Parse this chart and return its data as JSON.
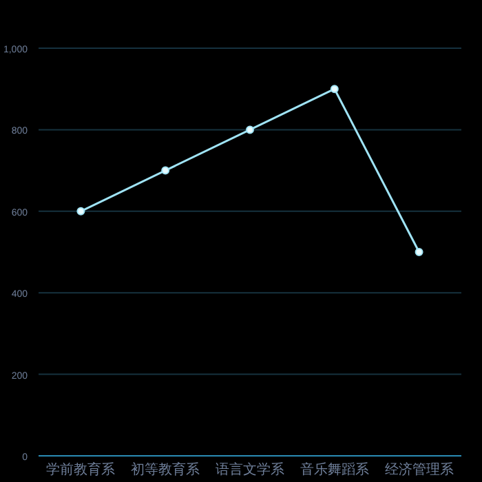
{
  "chart_data": {
    "type": "line",
    "categories": [
      "学前教育系",
      "初等教育系",
      "语言文学系",
      "音乐舞蹈系",
      "经济管理系"
    ],
    "series": [
      {
        "color": "#9fe3f5",
        "values": [
          600,
          700,
          800,
          900,
          500
        ]
      }
    ],
    "ylim": [
      0,
      1000
    ],
    "yticks": [
      0,
      200,
      400,
      600,
      800,
      {
        "value": 1000,
        "label": "1,000"
      }
    ],
    "grid": "y",
    "marker": "circle",
    "line_style": "solid"
  }
}
